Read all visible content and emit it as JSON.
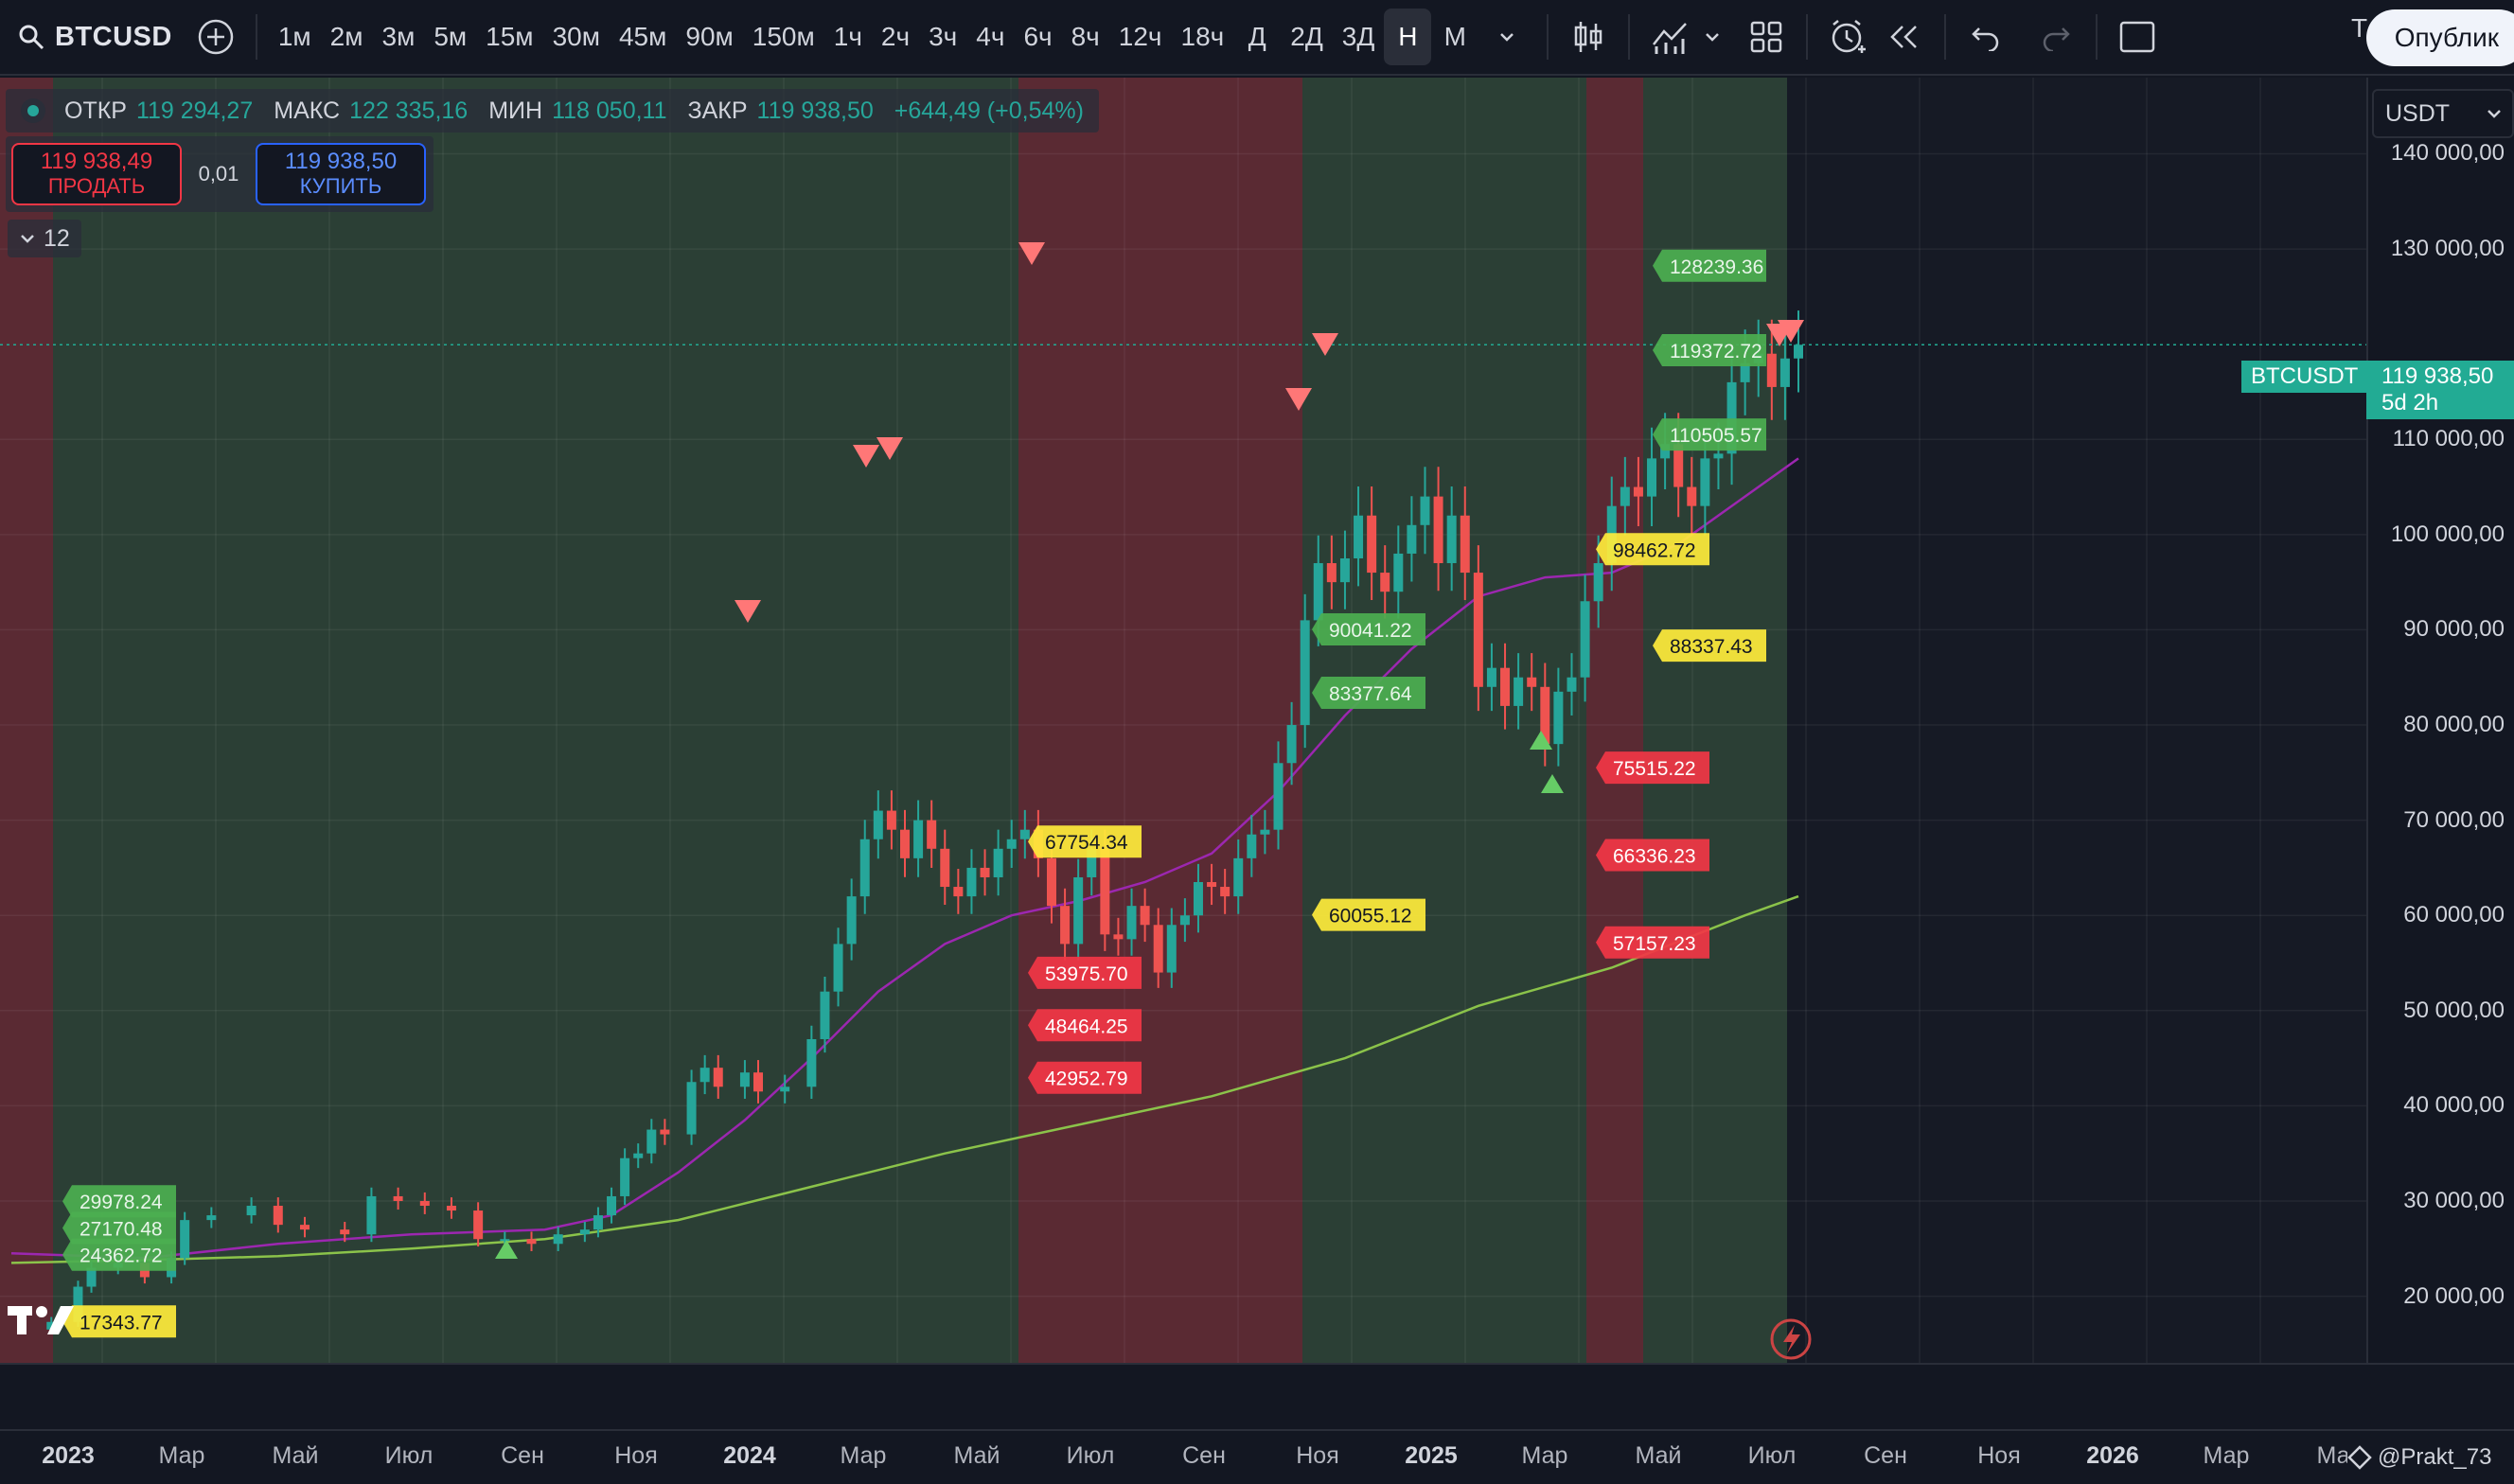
{
  "toolbar": {
    "symbol": "BTCUSD",
    "intervals": [
      "1м",
      "2м",
      "3м",
      "5м",
      "15м",
      "30м",
      "45м",
      "90м",
      "150м",
      "1ч",
      "2ч",
      "3ч",
      "4ч",
      "6ч",
      "8ч",
      "12ч",
      "18ч",
      "Д",
      "2Д",
      "3Д",
      "Н",
      "М"
    ],
    "active_interval": "Н",
    "publish_label": "Опублик",
    "tv_label": "T"
  },
  "legend": {
    "open_label": "ОТКР",
    "open": "119 294,27",
    "high_label": "МАКС",
    "high": "122 335,16",
    "low_label": "МИН",
    "low": "118 050,11",
    "close_label": "ЗАКР",
    "close": "119 938,50",
    "change": "+644,49 (+0,54%)"
  },
  "trade": {
    "sell_price": "119 938,49",
    "sell_label": "ПРОДАТЬ",
    "qty": "0,01",
    "buy_price": "119 938,50",
    "buy_label": "КУПИТЬ"
  },
  "indicators": {
    "count": "12"
  },
  "currency": {
    "selected": "USDT"
  },
  "price_axis": {
    "ticks": [
      {
        "value": 140000,
        "label": "140 000,00"
      },
      {
        "value": 130000,
        "label": "130 000,00"
      },
      {
        "value": 110000,
        "label": "110 000,00"
      },
      {
        "value": 100000,
        "label": "100 000,00"
      },
      {
        "value": 90000,
        "label": "90 000,00"
      },
      {
        "value": 80000,
        "label": "80 000,00"
      },
      {
        "value": 70000,
        "label": "70 000,00"
      },
      {
        "value": 60000,
        "label": "60 000,00"
      },
      {
        "value": 50000,
        "label": "50 000,00"
      },
      {
        "value": 40000,
        "label": "40 000,00"
      },
      {
        "value": 30000,
        "label": "30 000,00"
      },
      {
        "value": 20000,
        "label": "20 000,00"
      }
    ],
    "current_price": "119 938,50",
    "countdown": "5d 2h",
    "symbol_label": "BTCUSDT"
  },
  "time_axis": {
    "labels": [
      {
        "text": "2023",
        "year": true
      },
      {
        "text": "Мар"
      },
      {
        "text": "Май"
      },
      {
        "text": "Июл"
      },
      {
        "text": "Сен"
      },
      {
        "text": "Ноя"
      },
      {
        "text": "2024",
        "year": true
      },
      {
        "text": "Мар"
      },
      {
        "text": "Май"
      },
      {
        "text": "Июл"
      },
      {
        "text": "Сен"
      },
      {
        "text": "Ноя"
      },
      {
        "text": "2025",
        "year": true
      },
      {
        "text": "Мар"
      },
      {
        "text": "Май"
      },
      {
        "text": "Июл"
      },
      {
        "text": "Сен"
      },
      {
        "text": "Ноя"
      },
      {
        "text": "2026",
        "year": true
      },
      {
        "text": "Мар"
      },
      {
        "text": "Май"
      }
    ]
  },
  "author": "@Prakt_73",
  "chart_data": {
    "type": "candlestick",
    "x_start": "2022-12",
    "y_range": [
      13000,
      148000
    ],
    "bands": [
      {
        "from": "2022-12",
        "to": "2023-01",
        "color": "#5a2a33"
      },
      {
        "from": "2023-01",
        "to": "2024-06",
        "color": "#2b3f35"
      },
      {
        "from": "2024-06",
        "to": "2024-11",
        "color": "#5a2a33"
      },
      {
        "from": "2024-11",
        "to": "2025-04",
        "color": "#2b3f35"
      },
      {
        "from": "2025-04",
        "to": "2025-05",
        "color": "#5a2a33"
      },
      {
        "from": "2025-05",
        "to": "2025-08",
        "color": "#2b3f35"
      }
    ],
    "colors": {
      "up": "#26a69a",
      "down": "#ef5350",
      "ma_fast": "#9c27b0",
      "ma_slow": "#8bc34a"
    },
    "price_tags": [
      {
        "text": "128239.36",
        "price": 128239.36,
        "date": "2025-05",
        "kind": "green"
      },
      {
        "text": "119372.72",
        "price": 119372.72,
        "date": "2025-05",
        "kind": "green"
      },
      {
        "text": "110505.57",
        "price": 110505.57,
        "date": "2025-05",
        "kind": "green"
      },
      {
        "text": "98462.72",
        "price": 98462.72,
        "date": "2025-04",
        "kind": "yellow"
      },
      {
        "text": "88337.43",
        "price": 88337.43,
        "date": "2025-05",
        "kind": "yellow"
      },
      {
        "text": "90041.22",
        "price": 90041.22,
        "date": "2024-11",
        "kind": "green"
      },
      {
        "text": "83377.64",
        "price": 83377.64,
        "date": "2024-11",
        "kind": "green"
      },
      {
        "text": "60055.12",
        "price": 60055.12,
        "date": "2024-11",
        "kind": "yellow"
      },
      {
        "text": "75515.22",
        "price": 75515.22,
        "date": "2025-04",
        "kind": "red"
      },
      {
        "text": "66336.23",
        "price": 66336.23,
        "date": "2025-04",
        "kind": "red"
      },
      {
        "text": "57157.23",
        "price": 57157.23,
        "date": "2025-04",
        "kind": "red"
      },
      {
        "text": "67754.34",
        "price": 67754.34,
        "date": "2024-06",
        "kind": "yellow"
      },
      {
        "text": "53975.70",
        "price": 53975.7,
        "date": "2024-06",
        "kind": "red"
      },
      {
        "text": "48464.25",
        "price": 48464.25,
        "date": "2024-06",
        "kind": "red"
      },
      {
        "text": "42952.79",
        "price": 42952.79,
        "date": "2024-06",
        "kind": "red"
      },
      {
        "text": "29978.24",
        "price": 29978.24,
        "date": "2023-01",
        "kind": "green"
      },
      {
        "text": "27170.48",
        "price": 27170.48,
        "date": "2023-01",
        "kind": "green"
      },
      {
        "text": "24362.72",
        "price": 24362.72,
        "date": "2023-01",
        "kind": "green"
      },
      {
        "text": "17343.77",
        "price": 17343.77,
        "date": "2023-01",
        "kind": "yellow"
      }
    ],
    "ohlc_weekly_close_path": [
      [
        0,
        16500
      ],
      [
        3,
        17300
      ],
      [
        5,
        21000
      ],
      [
        6,
        23000
      ],
      [
        8,
        23500
      ],
      [
        10,
        22000
      ],
      [
        12,
        24000
      ],
      [
        13,
        28000
      ],
      [
        15,
        28500
      ],
      [
        18,
        29500
      ],
      [
        20,
        27500
      ],
      [
        22,
        27000
      ],
      [
        25,
        26500
      ],
      [
        27,
        30500
      ],
      [
        29,
        30000
      ],
      [
        31,
        29500
      ],
      [
        33,
        29000
      ],
      [
        35,
        26000
      ],
      [
        37,
        26000
      ],
      [
        39,
        25500
      ],
      [
        41,
        26500
      ],
      [
        43,
        27000
      ],
      [
        44,
        28500
      ],
      [
        45,
        30500
      ],
      [
        46,
        34500
      ],
      [
        47,
        35000
      ],
      [
        48,
        37500
      ],
      [
        49,
        37000
      ],
      [
        51,
        42500
      ],
      [
        52,
        44000
      ],
      [
        53,
        42000
      ],
      [
        55,
        43500
      ],
      [
        56,
        41500
      ],
      [
        58,
        42000
      ],
      [
        60,
        47000
      ],
      [
        61,
        52000
      ],
      [
        62,
        57000
      ],
      [
        63,
        62000
      ],
      [
        64,
        68000
      ],
      [
        65,
        71000
      ],
      [
        66,
        69000
      ],
      [
        67,
        66000
      ],
      [
        68,
        70000
      ],
      [
        69,
        67000
      ],
      [
        70,
        63000
      ],
      [
        71,
        62000
      ],
      [
        72,
        65000
      ],
      [
        73,
        64000
      ],
      [
        74,
        67000
      ],
      [
        75,
        68000
      ],
      [
        76,
        69000
      ],
      [
        77,
        66000
      ],
      [
        78,
        61000
      ],
      [
        79,
        57000
      ],
      [
        80,
        64000
      ],
      [
        81,
        67000
      ],
      [
        82,
        58000
      ],
      [
        83,
        57500
      ],
      [
        84,
        61000
      ],
      [
        85,
        59000
      ],
      [
        86,
        54000
      ],
      [
        87,
        59000
      ],
      [
        88,
        60000
      ],
      [
        89,
        63500
      ],
      [
        90,
        63000
      ],
      [
        91,
        62000
      ],
      [
        92,
        66000
      ],
      [
        93,
        68500
      ],
      [
        94,
        69000
      ],
      [
        95,
        76000
      ],
      [
        96,
        80000
      ],
      [
        97,
        91000
      ],
      [
        98,
        97000
      ],
      [
        99,
        95000
      ],
      [
        100,
        97500
      ],
      [
        101,
        102000
      ],
      [
        102,
        96000
      ],
      [
        103,
        94000
      ],
      [
        104,
        98000
      ],
      [
        105,
        101000
      ],
      [
        106,
        104000
      ],
      [
        107,
        97000
      ],
      [
        108,
        102000
      ],
      [
        109,
        96000
      ],
      [
        110,
        84000
      ],
      [
        111,
        86000
      ],
      [
        112,
        82000
      ],
      [
        113,
        85000
      ],
      [
        114,
        84000
      ],
      [
        115,
        78000
      ],
      [
        116,
        83500
      ],
      [
        117,
        85000
      ],
      [
        118,
        93000
      ],
      [
        119,
        97000
      ],
      [
        120,
        103000
      ],
      [
        121,
        105000
      ],
      [
        122,
        104000
      ],
      [
        123,
        108000
      ],
      [
        124,
        109500
      ],
      [
        125,
        105000
      ],
      [
        126,
        103000
      ],
      [
        127,
        108000
      ],
      [
        128,
        108500
      ],
      [
        129,
        116000
      ],
      [
        130,
        118000
      ],
      [
        131,
        119000
      ],
      [
        132,
        115500
      ],
      [
        133,
        118500
      ],
      [
        134,
        119938.5
      ]
    ],
    "ma_fast": [
      [
        0,
        24500
      ],
      [
        10,
        24000
      ],
      [
        20,
        25500
      ],
      [
        30,
        26500
      ],
      [
        40,
        27000
      ],
      [
        45,
        28500
      ],
      [
        50,
        33000
      ],
      [
        55,
        38500
      ],
      [
        60,
        45000
      ],
      [
        65,
        52000
      ],
      [
        70,
        57000
      ],
      [
        75,
        60000
      ],
      [
        80,
        61500
      ],
      [
        85,
        63500
      ],
      [
        90,
        66500
      ],
      [
        95,
        73000
      ],
      [
        100,
        81000
      ],
      [
        105,
        88000
      ],
      [
        110,
        93500
      ],
      [
        115,
        95500
      ],
      [
        120,
        96000
      ],
      [
        125,
        99000
      ],
      [
        130,
        104000
      ],
      [
        134,
        108000
      ]
    ],
    "ma_slow": [
      [
        0,
        23500
      ],
      [
        10,
        23800
      ],
      [
        20,
        24200
      ],
      [
        30,
        25000
      ],
      [
        40,
        26000
      ],
      [
        50,
        28000
      ],
      [
        60,
        31500
      ],
      [
        70,
        35000
      ],
      [
        80,
        38000
      ],
      [
        90,
        41000
      ],
      [
        100,
        45000
      ],
      [
        110,
        50500
      ],
      [
        120,
        54500
      ],
      [
        130,
        60000
      ],
      [
        134,
        62000
      ]
    ]
  }
}
